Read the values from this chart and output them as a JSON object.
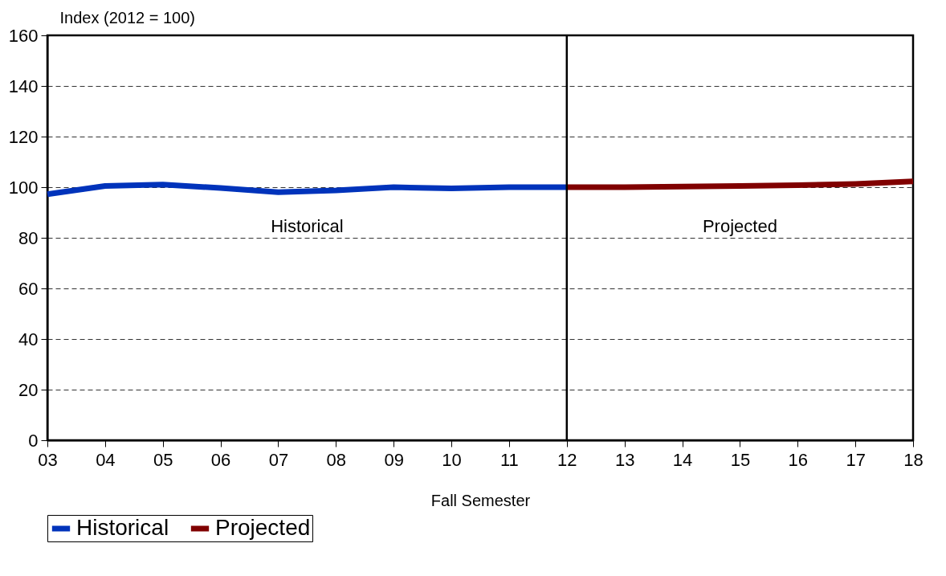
{
  "chart_data": {
    "type": "line",
    "xlabel": "Fall Semester",
    "ylabel": "Index (2012 = 100)",
    "categories": [
      "03",
      "04",
      "05",
      "06",
      "07",
      "08",
      "09",
      "10",
      "11",
      "12",
      "13",
      "14",
      "15",
      "16",
      "17",
      "18"
    ],
    "series": [
      {
        "name": "Historical",
        "color": "#0033bb",
        "values": [
          97.2,
          100.5,
          101,
          99.7,
          98,
          98.7,
          100,
          99.5,
          100,
          100,
          null,
          null,
          null,
          null,
          null,
          null
        ]
      },
      {
        "name": "Projected",
        "color": "#800000",
        "values": [
          null,
          null,
          null,
          null,
          null,
          null,
          null,
          null,
          null,
          100,
          100,
          100.2,
          100.5,
          100.8,
          101.3,
          102.3
        ]
      }
    ],
    "ylim": [
      0,
      160
    ],
    "yticks": [
      0,
      20,
      40,
      60,
      80,
      100,
      120,
      140,
      160
    ],
    "grid": "y",
    "legend": "bottom",
    "line_style": "solid",
    "ref_lines": [
      {
        "axis": "x",
        "value": "12",
        "color": "#000000"
      }
    ],
    "annotations": [
      "Historical",
      "Projected"
    ]
  }
}
